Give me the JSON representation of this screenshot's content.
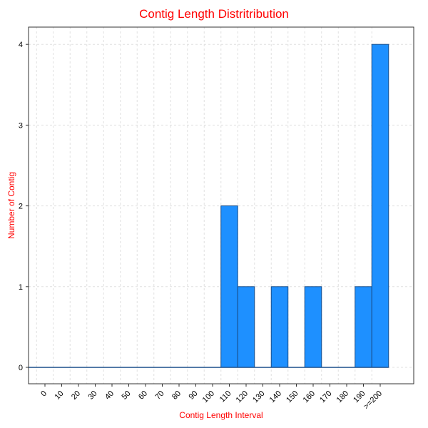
{
  "chart_data": {
    "type": "bar",
    "title": "Contig Length Distritribution",
    "xlabel": "Contig Length Interval",
    "ylabel": "Number of Contig",
    "categories": [
      "0",
      "10",
      "20",
      "30",
      "40",
      "50",
      "60",
      "70",
      "80",
      "90",
      "100",
      "110",
      "120",
      "130",
      "140",
      "150",
      "160",
      "170",
      "180",
      "190",
      ">=200"
    ],
    "values": [
      0,
      0,
      0,
      0,
      0,
      0,
      0,
      0,
      0,
      0,
      0,
      2,
      1,
      0,
      1,
      0,
      1,
      0,
      0,
      1,
      4
    ],
    "yticks": [
      0,
      1,
      2,
      3,
      4
    ],
    "ylim": [
      -0.2,
      4.2
    ],
    "grid": true,
    "colors": {
      "bar_fill": "#1e90ff",
      "bar_stroke": "#1a4f8a",
      "title": "#ff0000",
      "grid": "#e0e0e0"
    }
  }
}
